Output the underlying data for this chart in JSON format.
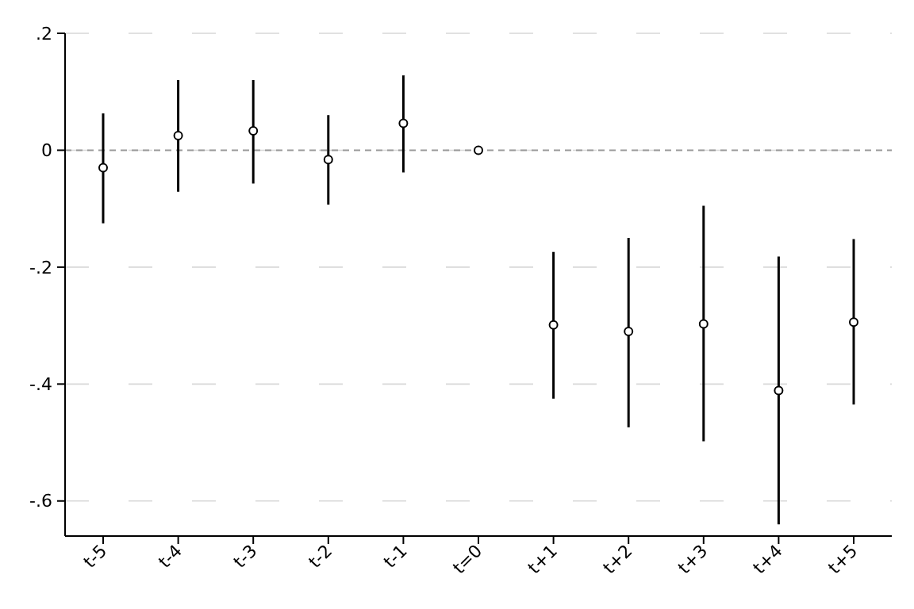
{
  "chart_data": {
    "type": "scatter",
    "categories": [
      "t-5",
      "t-4",
      "t-3",
      "t-2",
      "t-1",
      "t=0",
      "t+1",
      "t+2",
      "t+3",
      "t+4",
      "t+5"
    ],
    "series": [
      {
        "color": "#000000",
        "values": [
          -0.03,
          0.025,
          0.033,
          -0.016,
          0.046,
          0,
          -0.299,
          -0.31,
          -0.297,
          -0.411,
          -0.294
        ],
        "errors": [
          [
            -0.125,
            0.063
          ],
          [
            -0.071,
            0.12
          ],
          [
            -0.057,
            0.12
          ],
          [
            -0.093,
            0.06
          ],
          [
            -0.038,
            0.128
          ],
          null,
          [
            -0.425,
            -0.174
          ],
          [
            -0.474,
            -0.15
          ],
          [
            -0.498,
            -0.095
          ],
          [
            -0.64,
            -0.182
          ],
          [
            -0.435,
            -0.152
          ]
        ]
      }
    ],
    "ylim": [
      -0.66,
      0.2
    ],
    "yticks": [
      {
        "value": 0.2,
        "label": ".2"
      },
      {
        "value": 0,
        "label": "0"
      },
      {
        "value": -0.2,
        "label": "-.2"
      },
      {
        "value": -0.4,
        "label": "-.4"
      },
      {
        "value": -0.6,
        "label": "-.6"
      }
    ],
    "ref_lines": [
      {
        "axis": "y",
        "value": 0,
        "color": "#999999",
        "line_style": "dashed"
      }
    ],
    "grid": "y",
    "marker": "circle"
  }
}
